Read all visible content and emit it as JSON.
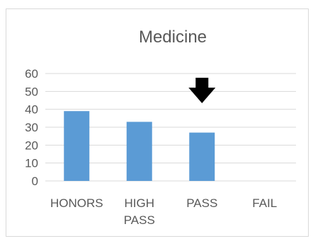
{
  "chart_data": {
    "type": "bar",
    "title": "Medicine",
    "categories": [
      [
        "HONORS"
      ],
      [
        "HIGH",
        "PASS"
      ],
      [
        "PASS"
      ],
      [
        "FAIL"
      ]
    ],
    "values": [
      39,
      33,
      27,
      0
    ],
    "ylim": [
      0,
      60
    ],
    "yticks": [
      0,
      10,
      20,
      30,
      40,
      50,
      60
    ],
    "grid": true,
    "legend": "none",
    "bar_color": "#5b9bd5",
    "annotation": {
      "type": "down-arrow-icon",
      "category_index": 2,
      "color": "#000000"
    }
  }
}
